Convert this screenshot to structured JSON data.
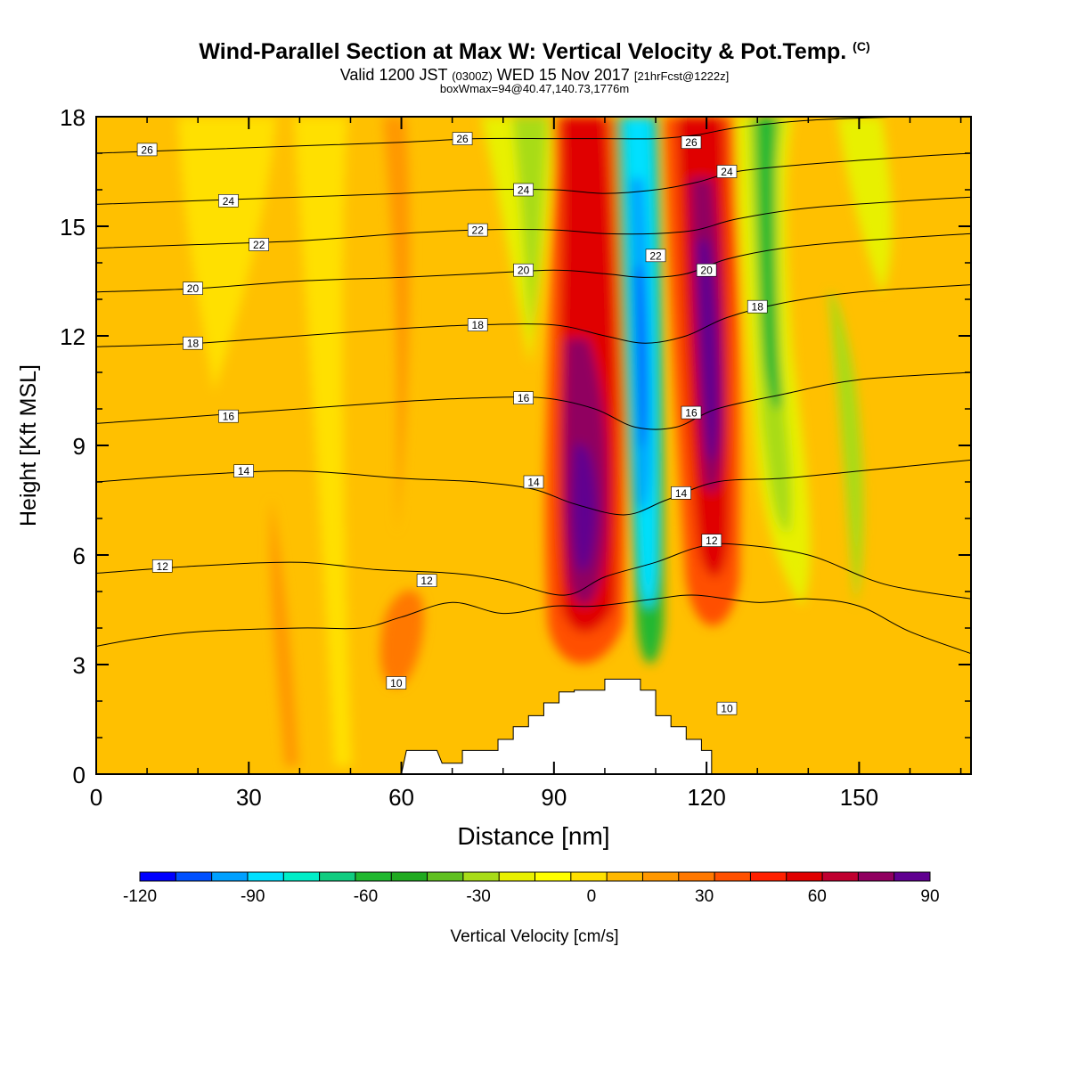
{
  "title": {
    "main": "Wind-Parallel Section at Max W: Vertical Velocity & Pot.Temp.",
    "copyright": "(C)",
    "valid_prefix": "Valid 1200 JST",
    "valid_utc": "(0300Z)",
    "valid_date": "WED 15 Nov 2017",
    "forecast": "[21hrFcst@1222z]",
    "box": "boxWmax=94@40.47,140.73,1776m"
  },
  "chart_data": {
    "type": "heatmap",
    "xlabel": "Distance [nm]",
    "ylabel": "Height [Kft MSL]",
    "xlim": [
      0,
      172
    ],
    "ylim": [
      0,
      18
    ],
    "xticks": [
      0,
      30,
      60,
      90,
      120,
      150
    ],
    "yticks": [
      0,
      3,
      6,
      9,
      12,
      15,
      18
    ],
    "colorbar": {
      "label": "Vertical Velocity [cm/s]",
      "ticks": [
        -120,
        -90,
        -60,
        -30,
        0,
        30,
        60,
        90
      ],
      "levels": [
        -120,
        -110,
        -100,
        -90,
        -80,
        -70,
        -60,
        -50,
        -40,
        -30,
        -20,
        -10,
        0,
        10,
        20,
        30,
        40,
        50,
        60,
        70,
        80,
        90
      ],
      "colors": [
        "#0000ff",
        "#0050ff",
        "#00a0ff",
        "#00e0ff",
        "#00eec8",
        "#10cc80",
        "#20b830",
        "#20aa20",
        "#60c020",
        "#a8dc18",
        "#e8f000",
        "#ffff00",
        "#ffe000",
        "#ffb800",
        "#ff9800",
        "#ff7800",
        "#ff5000",
        "#ff2000",
        "#e00000",
        "#c00030",
        "#900060",
        "#600090"
      ]
    },
    "terrain_kft": [
      [
        60,
        0
      ],
      [
        61,
        0.65
      ],
      [
        67,
        0.65
      ],
      [
        68,
        0.3
      ],
      [
        72,
        0.3
      ],
      [
        72,
        0.65
      ],
      [
        79,
        0.65
      ],
      [
        79,
        0.95
      ],
      [
        82,
        0.95
      ],
      [
        82,
        1.3
      ],
      [
        85,
        1.3
      ],
      [
        85,
        1.6
      ],
      [
        88,
        1.6
      ],
      [
        88,
        1.95
      ],
      [
        91,
        1.95
      ],
      [
        91,
        2.25
      ],
      [
        94,
        2.25
      ],
      [
        94,
        2.3
      ],
      [
        100,
        2.3
      ],
      [
        100,
        2.6
      ],
      [
        107,
        2.6
      ],
      [
        107,
        2.3
      ],
      [
        110,
        2.3
      ],
      [
        110,
        1.6
      ],
      [
        113,
        1.6
      ],
      [
        113,
        1.3
      ],
      [
        116,
        1.3
      ],
      [
        116,
        0.95
      ],
      [
        119,
        0.95
      ],
      [
        119,
        0.65
      ],
      [
        121,
        0.65
      ],
      [
        121,
        0
      ],
      [
        60,
        0
      ]
    ],
    "isentropes": [
      {
        "theta": 10,
        "label": "10",
        "points": [
          [
            0,
            3.5
          ],
          [
            8,
            3.7
          ],
          [
            20,
            3.9
          ],
          [
            40,
            4.0
          ],
          [
            52,
            4.0
          ],
          [
            60,
            4.3
          ],
          [
            70,
            4.7
          ],
          [
            80,
            4.4
          ],
          [
            90,
            4.6
          ],
          [
            98,
            4.6
          ],
          [
            110,
            4.8
          ],
          [
            118,
            4.9
          ],
          [
            130,
            4.7
          ],
          [
            140,
            4.8
          ],
          [
            150,
            4.6
          ],
          [
            160,
            3.9
          ],
          [
            172,
            3.3
          ]
        ]
      },
      {
        "theta": 12,
        "label": "12",
        "points": [
          [
            0,
            5.5
          ],
          [
            20,
            5.7
          ],
          [
            40,
            5.8
          ],
          [
            55,
            5.6
          ],
          [
            70,
            5.5
          ],
          [
            80,
            5.3
          ],
          [
            92,
            4.9
          ],
          [
            100,
            5.4
          ],
          [
            110,
            5.8
          ],
          [
            118,
            6.2
          ],
          [
            125,
            6.3
          ],
          [
            140,
            6.0
          ],
          [
            155,
            5.2
          ],
          [
            172,
            4.8
          ]
        ]
      },
      {
        "theta": 14,
        "label": "14",
        "points": [
          [
            0,
            8.0
          ],
          [
            20,
            8.2
          ],
          [
            40,
            8.3
          ],
          [
            60,
            8.1
          ],
          [
            75,
            8.0
          ],
          [
            86,
            7.8
          ],
          [
            94,
            7.4
          ],
          [
            104,
            7.1
          ],
          [
            112,
            7.5
          ],
          [
            122,
            8.0
          ],
          [
            135,
            8.1
          ],
          [
            150,
            8.3
          ],
          [
            172,
            8.6
          ]
        ]
      },
      {
        "theta": 16,
        "label": "16",
        "points": [
          [
            0,
            9.6
          ],
          [
            20,
            9.8
          ],
          [
            40,
            10.0
          ],
          [
            60,
            10.2
          ],
          [
            75,
            10.3
          ],
          [
            88,
            10.3
          ],
          [
            98,
            10.0
          ],
          [
            106,
            9.5
          ],
          [
            114,
            9.5
          ],
          [
            122,
            10.0
          ],
          [
            135,
            10.4
          ],
          [
            150,
            10.8
          ],
          [
            172,
            11.0
          ]
        ]
      },
      {
        "theta": 18,
        "label": "18",
        "points": [
          [
            0,
            11.7
          ],
          [
            20,
            11.8
          ],
          [
            40,
            12.0
          ],
          [
            60,
            12.2
          ],
          [
            75,
            12.3
          ],
          [
            90,
            12.3
          ],
          [
            100,
            12.0
          ],
          [
            108,
            11.8
          ],
          [
            116,
            12.0
          ],
          [
            124,
            12.5
          ],
          [
            135,
            12.9
          ],
          [
            150,
            13.2
          ],
          [
            172,
            13.4
          ]
        ]
      },
      {
        "theta": 20,
        "label": "20",
        "points": [
          [
            0,
            13.2
          ],
          [
            20,
            13.3
          ],
          [
            40,
            13.5
          ],
          [
            60,
            13.6
          ],
          [
            75,
            13.7
          ],
          [
            90,
            13.8
          ],
          [
            100,
            13.7
          ],
          [
            108,
            13.6
          ],
          [
            116,
            13.7
          ],
          [
            124,
            14.1
          ],
          [
            135,
            14.4
          ],
          [
            150,
            14.6
          ],
          [
            172,
            14.8
          ]
        ]
      },
      {
        "theta": 22,
        "label": "22",
        "points": [
          [
            0,
            14.4
          ],
          [
            20,
            14.5
          ],
          [
            40,
            14.6
          ],
          [
            60,
            14.8
          ],
          [
            75,
            14.9
          ],
          [
            90,
            14.9
          ],
          [
            100,
            14.8
          ],
          [
            110,
            14.8
          ],
          [
            118,
            14.9
          ],
          [
            126,
            15.2
          ],
          [
            140,
            15.5
          ],
          [
            160,
            15.7
          ],
          [
            172,
            15.8
          ]
        ]
      },
      {
        "theta": 24,
        "label": "24",
        "points": [
          [
            0,
            15.6
          ],
          [
            20,
            15.7
          ],
          [
            40,
            15.8
          ],
          [
            60,
            15.9
          ],
          [
            75,
            16.0
          ],
          [
            90,
            16.0
          ],
          [
            100,
            15.9
          ],
          [
            110,
            16.0
          ],
          [
            118,
            16.2
          ],
          [
            126,
            16.5
          ],
          [
            140,
            16.7
          ],
          [
            160,
            16.9
          ],
          [
            172,
            17.0
          ]
        ]
      },
      {
        "theta": 26,
        "label": "26",
        "points": [
          [
            0,
            17.0
          ],
          [
            20,
            17.1
          ],
          [
            40,
            17.2
          ],
          [
            60,
            17.3
          ],
          [
            75,
            17.4
          ],
          [
            90,
            17.4
          ],
          [
            100,
            17.4
          ],
          [
            110,
            17.4
          ],
          [
            118,
            17.5
          ],
          [
            126,
            17.7
          ],
          [
            140,
            17.9
          ],
          [
            160,
            18.0
          ],
          [
            172,
            18.0
          ]
        ]
      }
    ],
    "contour_labels": [
      {
        "text": "26",
        "x": 10,
        "y": 17.1
      },
      {
        "text": "26",
        "x": 72,
        "y": 17.4
      },
      {
        "text": "26",
        "x": 117,
        "y": 17.3
      },
      {
        "text": "24",
        "x": 26,
        "y": 15.7
      },
      {
        "text": "24",
        "x": 84,
        "y": 16.0
      },
      {
        "text": "24",
        "x": 124,
        "y": 16.5
      },
      {
        "text": "22",
        "x": 32,
        "y": 14.5
      },
      {
        "text": "22",
        "x": 75,
        "y": 14.9
      },
      {
        "text": "22",
        "x": 110,
        "y": 14.2
      },
      {
        "text": "20",
        "x": 19,
        "y": 13.3
      },
      {
        "text": "20",
        "x": 84,
        "y": 13.8
      },
      {
        "text": "20",
        "x": 120,
        "y": 13.8
      },
      {
        "text": "18",
        "x": 19,
        "y": 11.8
      },
      {
        "text": "18",
        "x": 75,
        "y": 12.3
      },
      {
        "text": "18",
        "x": 130,
        "y": 12.8
      },
      {
        "text": "16",
        "x": 26,
        "y": 9.8
      },
      {
        "text": "16",
        "x": 84,
        "y": 10.3
      },
      {
        "text": "16",
        "x": 117,
        "y": 9.9
      },
      {
        "text": "14",
        "x": 29,
        "y": 8.3
      },
      {
        "text": "14",
        "x": 86,
        "y": 8.0
      },
      {
        "text": "14",
        "x": 115,
        "y": 7.7
      },
      {
        "text": "12",
        "x": 13,
        "y": 5.7
      },
      {
        "text": "12",
        "x": 65,
        "y": 5.3
      },
      {
        "text": "12",
        "x": 121,
        "y": 6.4
      },
      {
        "text": "10",
        "x": 59,
        "y": 2.5
      },
      {
        "text": "10",
        "x": 124,
        "y": 1.8
      }
    ]
  }
}
